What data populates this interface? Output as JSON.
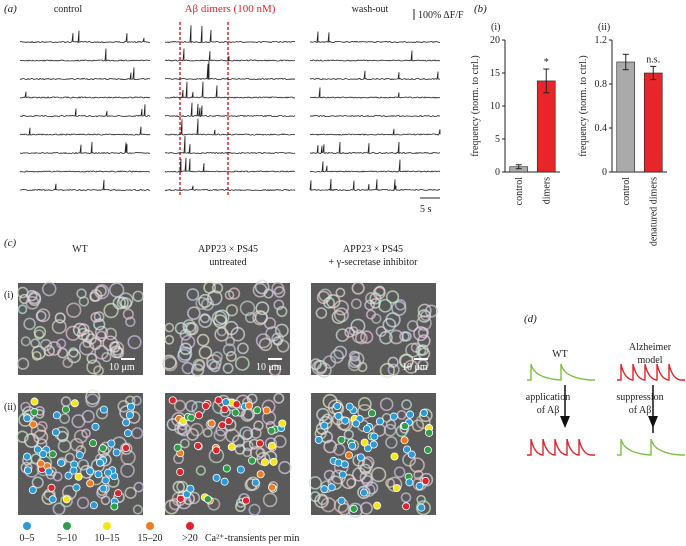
{
  "panel_a": {
    "label": "(a)",
    "columns": [
      "control",
      "Aβ dimers (100 nM)",
      "wash-out"
    ],
    "scale_y": "100% ΔF/F",
    "scale_x": "5 s"
  },
  "panel_b": {
    "label": "(b)"
  },
  "chart_data": [
    {
      "type": "bar",
      "panel": "(i)",
      "ylabel": "frequency (norm. to ctrl.)",
      "categories": [
        "control",
        "dimers"
      ],
      "values": [
        0.8,
        13.8
      ],
      "errors": [
        0.3,
        1.8
      ],
      "colors": [
        "#aaaaaa",
        "#e8262a"
      ],
      "value_annotations": [
        null,
        "*"
      ],
      "ylim": [
        0,
        20
      ],
      "yticks": [
        0,
        5,
        10,
        15,
        20
      ]
    },
    {
      "type": "bar",
      "panel": "(ii)",
      "ylabel": "frequency (norm. to ctrl.)",
      "categories": [
        "control",
        "denatured dimers"
      ],
      "values": [
        1.0,
        0.9
      ],
      "errors": [
        0.07,
        0.06
      ],
      "colors": [
        "#aaaaaa",
        "#e8262a"
      ],
      "value_annotations": [
        null,
        "n.s."
      ],
      "ylim": [
        0,
        1.2
      ],
      "yticks": [
        0,
        0.4,
        0.8,
        1.2
      ]
    }
  ],
  "panel_c": {
    "label": "(c)",
    "columns": [
      [
        "WT"
      ],
      [
        "APP23 × PS45",
        "untreated"
      ],
      [
        "APP23 × PS45",
        "+ γ-secretase inhibitor"
      ]
    ],
    "rows": [
      "(i)",
      "(ii)"
    ],
    "scale_bar": "10 μm",
    "legend": [
      {
        "label": "0–5",
        "color": "#2b9ad6"
      },
      {
        "label": "5–10",
        "color": "#2e9e48"
      },
      {
        "label": "10–15",
        "color": "#f2e51a"
      },
      {
        "label": "15–20",
        "color": "#ee7d22"
      },
      {
        "label": ">20",
        "color": "#e0232a"
      }
    ],
    "legend_title": "Ca²⁺-transients per min"
  },
  "panel_d": {
    "label": "(d)",
    "columns": [
      [
        "WT"
      ],
      [
        "Alzheimer",
        "model"
      ]
    ],
    "actions": [
      [
        "application",
        "of Aβ"
      ],
      [
        "suppression",
        "of Aβ"
      ]
    ]
  }
}
